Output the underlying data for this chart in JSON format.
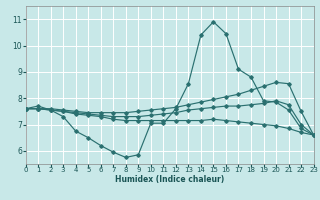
{
  "xlabel": "Humidex (Indice chaleur)",
  "xlim": [
    0,
    23
  ],
  "ylim": [
    5.5,
    11.5
  ],
  "yticks": [
    6,
    7,
    8,
    9,
    10,
    11
  ],
  "xticks": [
    0,
    1,
    2,
    3,
    4,
    5,
    6,
    7,
    8,
    9,
    10,
    11,
    12,
    13,
    14,
    15,
    16,
    17,
    18,
    19,
    20,
    21,
    22,
    23
  ],
  "bg_color": "#c8e8e8",
  "line_color": "#2a7070",
  "grid_color": "#ffffff",
  "lines": [
    {
      "x": [
        0,
        1,
        2,
        3,
        4,
        5,
        6,
        7,
        8,
        9,
        10,
        11,
        12,
        13,
        14,
        15,
        16,
        17,
        18,
        19,
        20,
        21,
        22,
        23
      ],
      "y": [
        7.6,
        7.7,
        7.55,
        7.3,
        6.75,
        6.5,
        6.2,
        5.95,
        5.75,
        5.85,
        7.05,
        7.05,
        7.6,
        8.55,
        10.4,
        10.9,
        10.45,
        9.1,
        8.8,
        7.9,
        7.85,
        7.55,
        6.85,
        6.6
      ]
    },
    {
      "x": [
        0,
        1,
        2,
        3,
        4,
        5,
        6,
        7,
        8,
        9,
        10,
        11,
        12,
        13,
        14,
        15,
        16,
        17,
        18,
        19,
        20,
        21,
        22,
        23
      ],
      "y": [
        7.6,
        7.6,
        7.6,
        7.55,
        7.5,
        7.45,
        7.45,
        7.45,
        7.45,
        7.5,
        7.55,
        7.6,
        7.65,
        7.75,
        7.85,
        7.95,
        8.05,
        8.15,
        8.3,
        8.45,
        8.6,
        8.55,
        7.5,
        6.6
      ]
    },
    {
      "x": [
        0,
        1,
        2,
        3,
        4,
        5,
        6,
        7,
        8,
        9,
        10,
        11,
        12,
        13,
        14,
        15,
        16,
        17,
        18,
        19,
        20,
        21,
        22,
        23
      ],
      "y": [
        7.6,
        7.6,
        7.55,
        7.5,
        7.45,
        7.4,
        7.35,
        7.3,
        7.3,
        7.3,
        7.35,
        7.4,
        7.45,
        7.55,
        7.6,
        7.65,
        7.7,
        7.7,
        7.75,
        7.8,
        7.9,
        7.75,
        7.0,
        6.6
      ]
    },
    {
      "x": [
        0,
        1,
        2,
        3,
        4,
        5,
        6,
        7,
        8,
        9,
        10,
        11,
        12,
        13,
        14,
        15,
        16,
        17,
        18,
        19,
        20,
        21,
        22,
        23
      ],
      "y": [
        7.6,
        7.6,
        7.55,
        7.5,
        7.4,
        7.35,
        7.3,
        7.2,
        7.15,
        7.15,
        7.15,
        7.15,
        7.15,
        7.15,
        7.15,
        7.2,
        7.15,
        7.1,
        7.05,
        7.0,
        6.95,
        6.85,
        6.7,
        6.6
      ]
    }
  ]
}
